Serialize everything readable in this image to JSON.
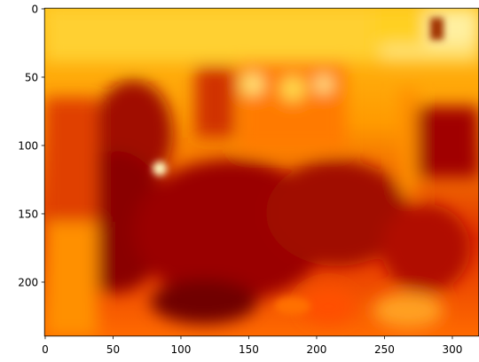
{
  "chart_data": {
    "type": "image",
    "xlim": [
      -0.5,
      319.5
    ],
    "ylim": [
      239.5,
      -0.5
    ],
    "xticks": [
      0,
      50,
      100,
      150,
      200,
      250,
      300
    ],
    "yticks": [
      0,
      50,
      100,
      150,
      200
    ]
  }
}
